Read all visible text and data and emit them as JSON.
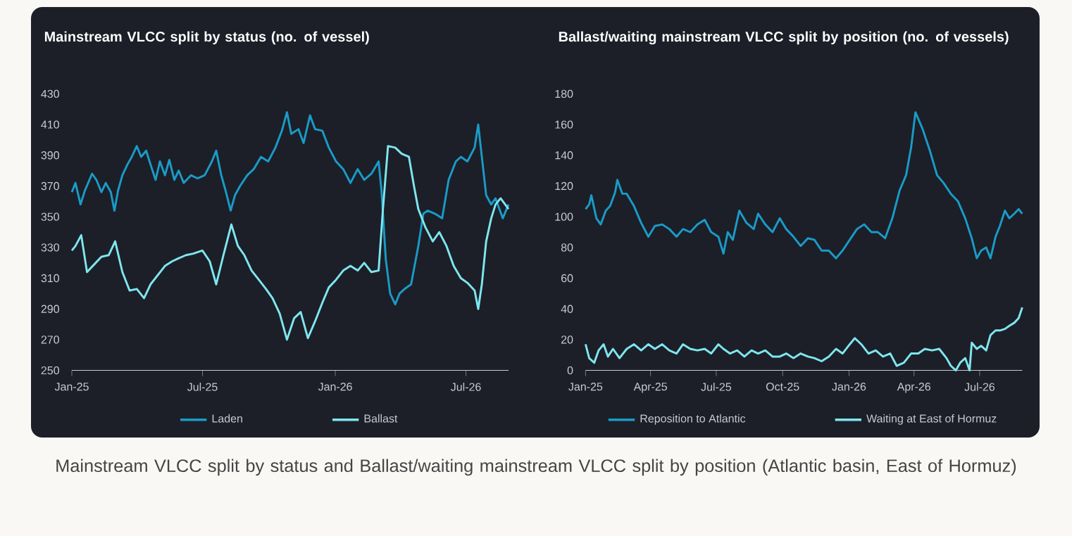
{
  "chart_data": [
    {
      "type": "line",
      "title": "Mainstream VLCC split by status (no. of vessel)",
      "xlim": [
        "2025-01-01",
        "2026-08-29"
      ],
      "xticks": [
        {
          "value": "2025-01-01",
          "label": "Jan-25"
        },
        {
          "value": "2025-07-01",
          "label": "Jul-25"
        },
        {
          "value": "2026-01-01",
          "label": "Jan-26"
        },
        {
          "value": "2026-07-01",
          "label": "Jul-26"
        }
      ],
      "ylim": [
        250,
        430
      ],
      "yticks": [
        250,
        270,
        290,
        310,
        330,
        350,
        370,
        390,
        410,
        430
      ],
      "legend": "bottom",
      "annotations": [
        "Mainstream VLCC split by status and Ballast/waiting mainstream VLCC split by position (Atlantic basin, East of Hormuz)"
      ],
      "series": [
        {
          "name": "Laden",
          "color": "#1a9bc7",
          "x": [
            "2025-01-01",
            "2025-01-06",
            "2025-01-13",
            "2025-01-19",
            "2025-01-29",
            "2025-02-04",
            "2025-02-11",
            "2025-02-17",
            "2025-02-24",
            "2025-03-01",
            "2025-03-06",
            "2025-03-12",
            "2025-03-19",
            "2025-03-25",
            "2025-04-01",
            "2025-04-07",
            "2025-04-14",
            "2025-04-20",
            "2025-04-27",
            "2025-05-03",
            "2025-05-10",
            "2025-05-16",
            "2025-05-23",
            "2025-05-29",
            "2025-06-05",
            "2025-06-15",
            "2025-06-24",
            "2025-07-04",
            "2025-07-14",
            "2025-07-20",
            "2025-07-27",
            "2025-08-02",
            "2025-08-09",
            "2025-08-15",
            "2025-08-22",
            "2025-09-01",
            "2025-09-10",
            "2025-09-20",
            "2025-09-30",
            "2025-10-10",
            "2025-10-19",
            "2025-10-26",
            "2025-11-01",
            "2025-11-11",
            "2025-11-18",
            "2025-11-27",
            "2025-12-04",
            "2025-12-14",
            "2025-12-23",
            "2026-01-02",
            "2026-01-12",
            "2026-01-22",
            "2026-02-01",
            "2026-02-10",
            "2026-02-20",
            "2026-03-02",
            "2026-03-06",
            "2026-03-12",
            "2026-03-18",
            "2026-03-25",
            "2026-03-31",
            "2026-04-07",
            "2026-04-16",
            "2026-04-26",
            "2026-05-03",
            "2026-05-09",
            "2026-05-19",
            "2026-05-29",
            "2026-06-07",
            "2026-06-17",
            "2026-06-24",
            "2026-07-03",
            "2026-07-13",
            "2026-07-18",
            "2026-07-23",
            "2026-07-29",
            "2026-08-05",
            "2026-08-11",
            "2026-08-21",
            "2026-08-29"
          ],
          "values": [
            366,
            372,
            358,
            367,
            378,
            374,
            366,
            372,
            366,
            354,
            367,
            377,
            384,
            389,
            396,
            389,
            393,
            384,
            374,
            386,
            377,
            387,
            374,
            380,
            372,
            377,
            375,
            377,
            386,
            393,
            377,
            367,
            354,
            364,
            370,
            377,
            381,
            389,
            386,
            395,
            406,
            418,
            404,
            407,
            398,
            416,
            407,
            406,
            395,
            386,
            381,
            372,
            381,
            374,
            378,
            386,
            367,
            322,
            300,
            293,
            300,
            303,
            306,
            331,
            352,
            354,
            352,
            349,
            374,
            386,
            389,
            386,
            395,
            410,
            389,
            364,
            358,
            362,
            349,
            358
          ]
        },
        {
          "name": "Ballast",
          "color": "#7fe6ef",
          "x": [
            "2025-01-01",
            "2025-01-06",
            "2025-01-14",
            "2025-01-22",
            "2025-02-01",
            "2025-02-11",
            "2025-02-21",
            "2025-03-02",
            "2025-03-12",
            "2025-03-22",
            "2025-04-01",
            "2025-04-11",
            "2025-04-20",
            "2025-04-30",
            "2025-05-10",
            "2025-05-20",
            "2025-05-29",
            "2025-06-08",
            "2025-06-18",
            "2025-07-01",
            "2025-07-11",
            "2025-07-20",
            "2025-07-30",
            "2025-08-10",
            "2025-08-19",
            "2025-08-28",
            "2025-09-07",
            "2025-09-17",
            "2025-09-27",
            "2025-10-06",
            "2025-10-16",
            "2025-10-26",
            "2025-11-05",
            "2025-11-14",
            "2025-11-24",
            "2025-12-04",
            "2025-12-14",
            "2025-12-23",
            "2026-01-02",
            "2026-01-12",
            "2026-01-22",
            "2026-02-01",
            "2026-02-10",
            "2026-02-20",
            "2026-03-02",
            "2026-03-08",
            "2026-03-15",
            "2026-03-25",
            "2026-04-03",
            "2026-04-13",
            "2026-04-20",
            "2026-04-26",
            "2026-05-06",
            "2026-05-16",
            "2026-05-25",
            "2026-06-04",
            "2026-06-14",
            "2026-06-24",
            "2026-07-03",
            "2026-07-13",
            "2026-07-18",
            "2026-07-23",
            "2026-07-29",
            "2026-08-05",
            "2026-08-11",
            "2026-08-18",
            "2026-08-29"
          ],
          "values": [
            328,
            331,
            338,
            314,
            319,
            324,
            325,
            334,
            314,
            302,
            303,
            297,
            306,
            312,
            318,
            321,
            323,
            325,
            326,
            328,
            321,
            306,
            325,
            345,
            331,
            325,
            315,
            309,
            303,
            297,
            287,
            270,
            284,
            288,
            271,
            282,
            294,
            304,
            309,
            315,
            318,
            315,
            320,
            314,
            315,
            355,
            396,
            395,
            391,
            389,
            370,
            355,
            343,
            334,
            340,
            331,
            318,
            310,
            307,
            302,
            290,
            306,
            334,
            349,
            358,
            362,
            355
          ]
        }
      ]
    },
    {
      "type": "line",
      "title": "Ballast/waiting mainstream VLCC split by position (no. of vessels)",
      "xlim": [
        "2025-01-01",
        "2026-08-29"
      ],
      "xticks": [
        {
          "value": "2025-01-01",
          "label": "Jan-25"
        },
        {
          "value": "2025-04-01",
          "label": "Apr-25"
        },
        {
          "value": "2025-07-01",
          "label": "Jul-25"
        },
        {
          "value": "2025-10-01",
          "label": "Oct-25"
        },
        {
          "value": "2026-01-01",
          "label": "Jan-26"
        },
        {
          "value": "2026-04-01",
          "label": "Apr-26"
        },
        {
          "value": "2026-07-01",
          "label": "Jul-26"
        }
      ],
      "ylim": [
        0,
        180
      ],
      "yticks": [
        0,
        20,
        40,
        60,
        80,
        100,
        120,
        140,
        160,
        180
      ],
      "legend": "bottom",
      "series": [
        {
          "name": "Reposition to Atlantic",
          "color": "#1a9bc7",
          "x": [
            "2025-01-01",
            "2025-01-06",
            "2025-01-09",
            "2025-01-16",
            "2025-01-22",
            "2025-01-29",
            "2025-02-04",
            "2025-02-11",
            "2025-02-14",
            "2025-02-21",
            "2025-02-27",
            "2025-03-09",
            "2025-03-19",
            "2025-03-29",
            "2025-04-07",
            "2025-04-17",
            "2025-04-27",
            "2025-05-07",
            "2025-05-16",
            "2025-05-26",
            "2025-06-05",
            "2025-06-15",
            "2025-06-24",
            "2025-07-04",
            "2025-07-11",
            "2025-07-17",
            "2025-07-24",
            "2025-08-02",
            "2025-08-12",
            "2025-08-22",
            "2025-08-28",
            "2025-09-07",
            "2025-09-17",
            "2025-09-27",
            "2025-10-06",
            "2025-10-16",
            "2025-10-26",
            "2025-11-05",
            "2025-11-14",
            "2025-11-24",
            "2025-12-04",
            "2025-12-14",
            "2025-12-23",
            "2026-01-02",
            "2026-01-12",
            "2026-01-22",
            "2026-02-01",
            "2026-02-10",
            "2026-02-20",
            "2026-03-02",
            "2026-03-12",
            "2026-03-21",
            "2026-03-28",
            "2026-04-03",
            "2026-04-13",
            "2026-04-23",
            "2026-05-03",
            "2026-05-12",
            "2026-05-22",
            "2026-06-01",
            "2026-06-11",
            "2026-06-20",
            "2026-06-27",
            "2026-07-03",
            "2026-07-10",
            "2026-07-16",
            "2026-07-23",
            "2026-07-29",
            "2026-08-05",
            "2026-08-11",
            "2026-08-18",
            "2026-08-24",
            "2026-08-29"
          ],
          "values": [
            105,
            108,
            114,
            99,
            95,
            104,
            107,
            116,
            124,
            115,
            115,
            107,
            96,
            87,
            94,
            95,
            92,
            87,
            92,
            90,
            95,
            98,
            90,
            87,
            76,
            90,
            85,
            104,
            96,
            92,
            102,
            95,
            90,
            99,
            92,
            87,
            81,
            86,
            85,
            78,
            78,
            73,
            78,
            85,
            92,
            95,
            90,
            90,
            86,
            99,
            117,
            127,
            145,
            168,
            157,
            143,
            127,
            122,
            115,
            110,
            99,
            86,
            73,
            78,
            80,
            73,
            87,
            94,
            104,
            99,
            102,
            105,
            102
          ]
        },
        {
          "name": "Waiting at East of Hormuz",
          "color": "#7fe6ef",
          "x": [
            "2025-01-01",
            "2025-01-06",
            "2025-01-13",
            "2025-01-19",
            "2025-01-26",
            "2025-02-01",
            "2025-02-08",
            "2025-02-17",
            "2025-02-27",
            "2025-03-09",
            "2025-03-19",
            "2025-03-29",
            "2025-04-07",
            "2025-04-17",
            "2025-04-27",
            "2025-05-07",
            "2025-05-16",
            "2025-05-26",
            "2025-06-05",
            "2025-06-15",
            "2025-06-24",
            "2025-07-04",
            "2025-07-11",
            "2025-07-20",
            "2025-07-30",
            "2025-08-09",
            "2025-08-19",
            "2025-08-28",
            "2025-09-07",
            "2025-09-17",
            "2025-09-27",
            "2025-10-06",
            "2025-10-16",
            "2025-10-26",
            "2025-11-05",
            "2025-11-14",
            "2025-11-24",
            "2025-12-04",
            "2025-12-14",
            "2025-12-23",
            "2026-01-02",
            "2026-01-09",
            "2026-01-18",
            "2026-01-28",
            "2026-02-07",
            "2026-02-17",
            "2026-02-27",
            "2026-03-08",
            "2026-03-18",
            "2026-03-28",
            "2026-04-07",
            "2026-04-16",
            "2026-04-26",
            "2026-05-06",
            "2026-05-16",
            "2026-05-22",
            "2026-05-29",
            "2026-06-04",
            "2026-06-11",
            "2026-06-17",
            "2026-06-20",
            "2026-06-27",
            "2026-07-03",
            "2026-07-10",
            "2026-07-16",
            "2026-07-23",
            "2026-07-29",
            "2026-08-05",
            "2026-08-11",
            "2026-08-18",
            "2026-08-24",
            "2026-08-29"
          ],
          "values": [
            17,
            8,
            5,
            13,
            17,
            9,
            14,
            8,
            14,
            17,
            13,
            17,
            14,
            17,
            13,
            11,
            17,
            14,
            13,
            14,
            11,
            17,
            14,
            11,
            13,
            9,
            13,
            11,
            13,
            9,
            9,
            11,
            8,
            11,
            9,
            8,
            6,
            9,
            14,
            11,
            17,
            21,
            17,
            11,
            13,
            9,
            11,
            3,
            5,
            11,
            11,
            14,
            13,
            14,
            8,
            3,
            0,
            5,
            8,
            0,
            18,
            14,
            16,
            13,
            23,
            26,
            26,
            27,
            29,
            31,
            34,
            41
          ]
        }
      ]
    }
  ]
}
